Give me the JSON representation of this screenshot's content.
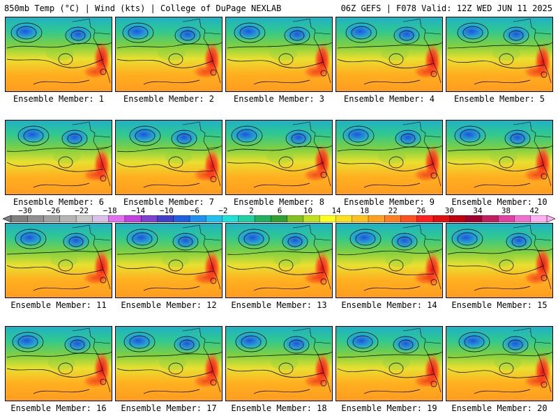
{
  "header": {
    "left": "850mb Temp (°C) | Wind (kts) | College of DuPage NEXLAB",
    "right": "06Z GEFS | F078 Valid: 12Z WED JUN 11 2025"
  },
  "colorbar": {
    "labels": [
      "−30",
      "−26",
      "−22",
      "−18",
      "−14",
      "−10",
      "−6",
      "−2",
      "2",
      "6",
      "10",
      "14",
      "18",
      "22",
      "26",
      "30",
      "34",
      "38",
      "42"
    ],
    "colors": [
      "#808080",
      "#909090",
      "#a0a0a0",
      "#b4b4b4",
      "#c8c8c8",
      "#d8c0e8",
      "#e070f0",
      "#c040e0",
      "#8040d0",
      "#4040c8",
      "#2060e0",
      "#2090f0",
      "#20c0f0",
      "#20e0d8",
      "#20d0a0",
      "#20b060",
      "#30a030",
      "#80c020",
      "#c0e020",
      "#ffff20",
      "#ffe020",
      "#ffc020",
      "#ffa020",
      "#ff8020",
      "#ff5020",
      "#ff2020",
      "#e01010",
      "#c00010",
      "#a00030",
      "#c02060",
      "#e040a0",
      "#f070d0",
      "#ffb0f0"
    ]
  },
  "panels": [
    {
      "label": "Ensemble Member: 1"
    },
    {
      "label": "Ensemble Member: 2"
    },
    {
      "label": "Ensemble Member: 3"
    },
    {
      "label": "Ensemble Member: 4"
    },
    {
      "label": "Ensemble Member: 5"
    },
    {
      "label": "Ensemble Member: 6"
    },
    {
      "label": "Ensemble Member: 7"
    },
    {
      "label": "Ensemble Member: 8"
    },
    {
      "label": "Ensemble Member: 9"
    },
    {
      "label": "Ensemble Member: 10"
    },
    {
      "label": "Ensemble Member: 11"
    },
    {
      "label": "Ensemble Member: 12"
    },
    {
      "label": "Ensemble Member: 13"
    },
    {
      "label": "Ensemble Member: 14"
    },
    {
      "label": "Ensemble Member: 15"
    },
    {
      "label": "Ensemble Member: 16"
    },
    {
      "label": "Ensemble Member: 17"
    },
    {
      "label": "Ensemble Member: 18"
    },
    {
      "label": "Ensemble Member: 19"
    },
    {
      "label": "Ensemble Member: 20"
    }
  ]
}
